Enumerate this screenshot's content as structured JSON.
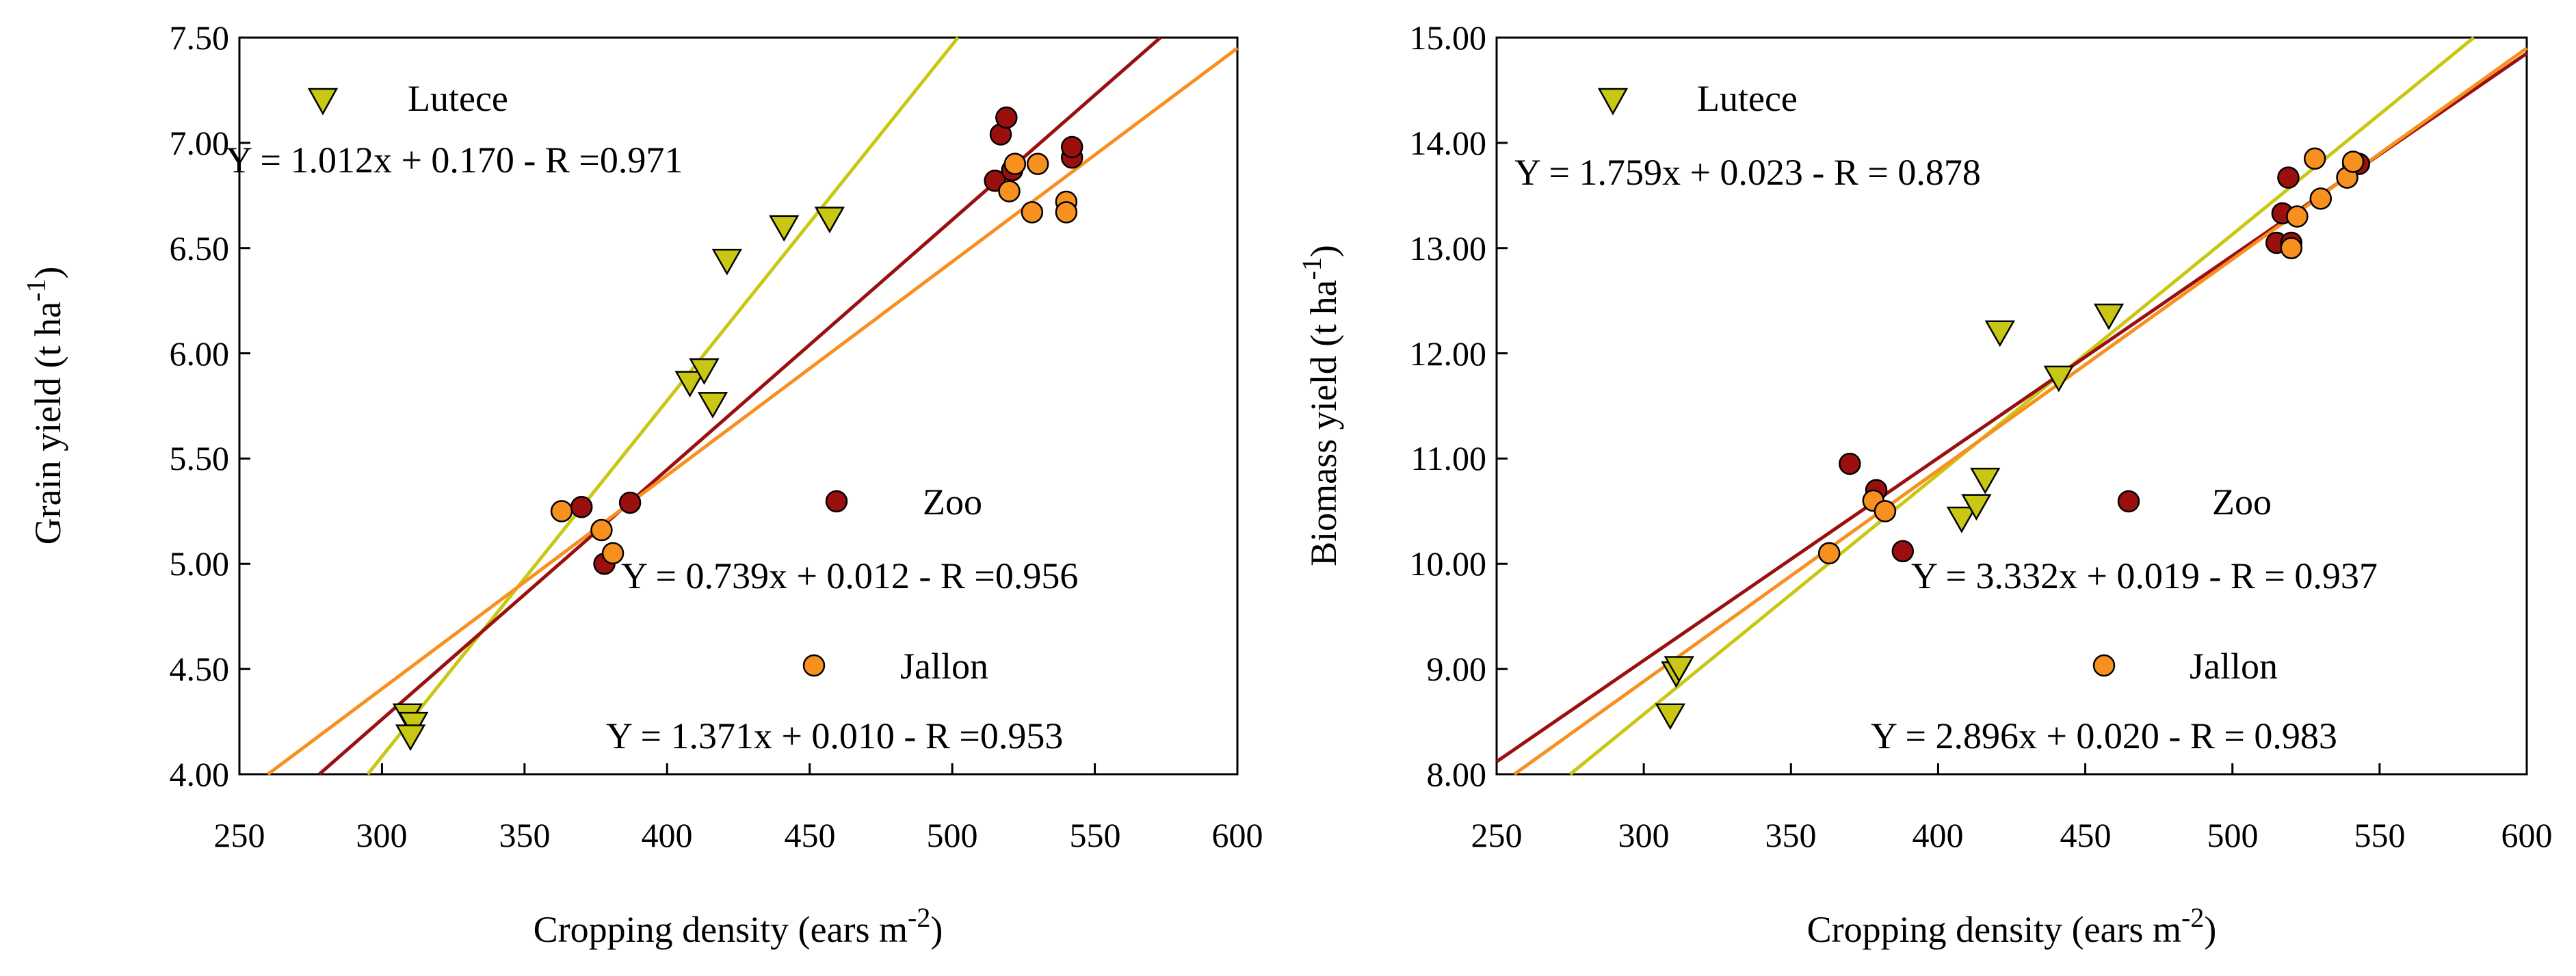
{
  "chart_data": [
    {
      "type": "scatter",
      "panel": "left",
      "xlabel": "Cropping density (ears m",
      "xlabel_sup": "-2",
      "xlabel_close": ")",
      "ylabel": "Grain yield (t ha",
      "ylabel_sup": "-1",
      "ylabel_close": ")",
      "xlim": [
        250,
        600
      ],
      "ylim": [
        4.0,
        7.5
      ],
      "xticks": [
        "250",
        "300",
        "350",
        "400",
        "450",
        "500",
        "550",
        "600"
      ],
      "yticks": [
        "4.00",
        "4.50",
        "5.00",
        "5.50",
        "6.00",
        "6.50",
        "7.00",
        "7.50"
      ],
      "series": [
        {
          "name": "Lutece",
          "color": "#c8c814",
          "marker": "triangle-down",
          "equation": "Y = 1.012x + 0.170 - R =0.971",
          "line": {
            "x": [
              295,
              502
            ],
            "y": [
              4.0,
              7.5
            ]
          },
          "points": [
            [
              309,
              4.29
            ],
            [
              311,
              4.25
            ],
            [
              310,
              4.19
            ],
            [
              408,
              5.87
            ],
            [
              413,
              5.93
            ],
            [
              416,
              5.77
            ],
            [
              421,
              6.45
            ],
            [
              441,
              6.61
            ],
            [
              457,
              6.65
            ]
          ]
        },
        {
          "name": "Zoo",
          "color": "#9b0f0f",
          "marker": "circle",
          "equation": "Y = 0.739x + 0.012 - R =0.956",
          "line": {
            "x": [
              278,
              573
            ],
            "y": [
              4.0,
              7.5
            ]
          },
          "points": [
            [
              370,
              5.27
            ],
            [
              387,
              5.29
            ],
            [
              378,
              5.0
            ],
            [
              515,
              6.82
            ],
            [
              517,
              7.04
            ],
            [
              519,
              7.12
            ],
            [
              521,
              6.87
            ],
            [
              542,
              6.93
            ],
            [
              542,
              6.98
            ]
          ]
        },
        {
          "name": "Jallon",
          "color": "#f7901e",
          "marker": "circle",
          "equation": "Y = 1.371x + 0.010 - R =0.953",
          "line": {
            "x": [
              260,
              600
            ],
            "y": [
              4.0,
              7.45
            ]
          },
          "points": [
            [
              363,
              5.25
            ],
            [
              377,
              5.16
            ],
            [
              381,
              5.05
            ],
            [
              520,
              6.77
            ],
            [
              522,
              6.9
            ],
            [
              528,
              6.67
            ],
            [
              530,
              6.9
            ],
            [
              540,
              6.72
            ],
            [
              540,
              6.67
            ]
          ]
        }
      ]
    },
    {
      "type": "scatter",
      "panel": "right",
      "xlabel": "Cropping density (ears m",
      "xlabel_sup": "-2",
      "xlabel_close": ")",
      "ylabel": "Biomass yield (t ha",
      "ylabel_sup": "-1",
      "ylabel_close": ")",
      "xlim": [
        250,
        600
      ],
      "ylim": [
        8.0,
        15.0
      ],
      "xticks": [
        "250",
        "300",
        "350",
        "400",
        "450",
        "500",
        "550",
        "600"
      ],
      "yticks": [
        "8.00",
        "9.00",
        "10.00",
        "11.00",
        "12.00",
        "13.00",
        "14.00",
        "15.00"
      ],
      "series": [
        {
          "name": "Lutece",
          "color": "#c8c814",
          "marker": "triangle-down",
          "equation": "Y = 1.759x + 0.023 - R = 0.878",
          "line": {
            "x": [
              275,
              582
            ],
            "y": [
              8.0,
              15.0
            ]
          },
          "points": [
            [
              309,
              8.58
            ],
            [
              311,
              8.98
            ],
            [
              312,
              9.03
            ],
            [
              408,
              10.45
            ],
            [
              413,
              10.57
            ],
            [
              416,
              10.82
            ],
            [
              421,
              12.22
            ],
            [
              441,
              11.79
            ],
            [
              458,
              12.38
            ]
          ]
        },
        {
          "name": "Zoo",
          "color": "#9b0f0f",
          "marker": "circle",
          "equation": "Y = 3.332x + 0.019 - R = 0.937",
          "line": {
            "x": [
              250,
              600
            ],
            "y": [
              8.12,
              14.85
            ]
          },
          "points": [
            [
              370,
              10.95
            ],
            [
              379,
              10.7
            ],
            [
              388,
              10.12
            ],
            [
              515,
              13.05
            ],
            [
              517,
              13.33
            ],
            [
              519,
              13.67
            ],
            [
              520,
              13.05
            ],
            [
              541,
              13.8
            ],
            [
              543,
              13.8
            ]
          ]
        },
        {
          "name": "Jallon",
          "color": "#f7901e",
          "marker": "circle",
          "equation": "Y = 2.896x + 0.020 - R = 0.983",
          "line": {
            "x": [
              256,
              600
            ],
            "y": [
              8.0,
              14.9
            ]
          },
          "points": [
            [
              363,
              10.1
            ],
            [
              378,
              10.6
            ],
            [
              382,
              10.5
            ],
            [
              520,
              13.0
            ],
            [
              522,
              13.3
            ],
            [
              528,
              13.85
            ],
            [
              530,
              13.47
            ],
            [
              539,
              13.67
            ],
            [
              541,
              13.82
            ]
          ]
        }
      ]
    }
  ]
}
